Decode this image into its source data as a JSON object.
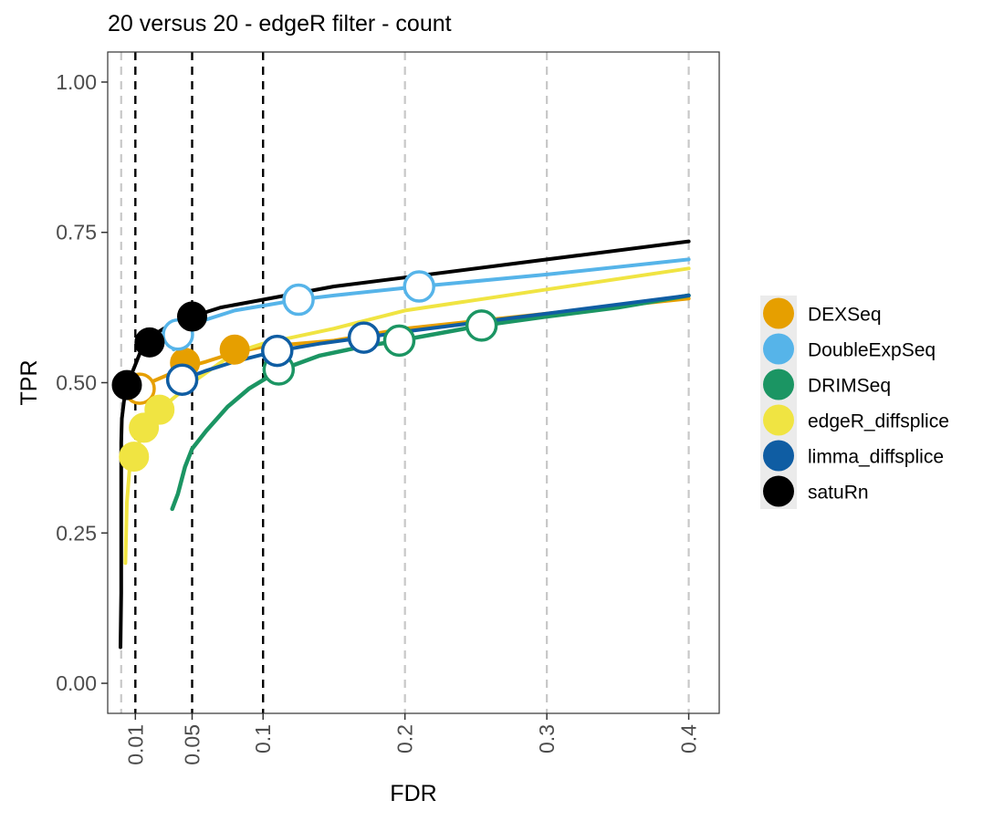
{
  "chart_data": {
    "type": "line",
    "title": "20 versus 20 - edgeR filter - count",
    "xlabel": "FDR",
    "ylabel": "TPR",
    "xlim": [
      -0.0095,
      0.4215
    ],
    "ylim": [
      -0.05,
      1.05
    ],
    "x_ticks": [
      0.01,
      0.05,
      0.1,
      0.2,
      0.3,
      0.4
    ],
    "x_tick_labels": [
      "0.01",
      "0.05",
      "0.1",
      "0.2",
      "0.3",
      "0.4"
    ],
    "y_ticks": [
      0,
      0.25,
      0.5,
      0.75,
      1
    ],
    "y_tick_labels": [
      "0.00",
      "0.25",
      "0.50",
      "0.75",
      "1.00"
    ],
    "fdr_thresholds": [
      0.01,
      0.05,
      0.1
    ],
    "grid": "vertical dashed at x ticks and at 0",
    "legend_position": "right",
    "series": [
      {
        "name": "DEXSeq",
        "color": "#E69F00",
        "curve": [
          [
            0.01,
            0.47
          ],
          [
            0.013,
            0.49
          ],
          [
            0.02,
            0.5
          ],
          [
            0.03,
            0.51
          ],
          [
            0.045,
            0.525
          ],
          [
            0.06,
            0.535
          ],
          [
            0.08,
            0.55
          ],
          [
            0.1,
            0.56
          ],
          [
            0.15,
            0.57
          ],
          [
            0.2,
            0.59
          ],
          [
            0.3,
            0.615
          ],
          [
            0.4,
            0.64
          ]
        ],
        "points": [
          [
            0.013,
            0.49,
            "open"
          ],
          [
            0.045,
            0.533,
            "filled"
          ],
          [
            0.08,
            0.555,
            "filled"
          ]
        ]
      },
      {
        "name": "DoubleExpSeq",
        "color": "#56B4E9",
        "curve": [
          [
            0.037,
            0.555
          ],
          [
            0.045,
            0.585
          ],
          [
            0.06,
            0.605
          ],
          [
            0.08,
            0.62
          ],
          [
            0.1,
            0.628
          ],
          [
            0.125,
            0.638
          ],
          [
            0.15,
            0.645
          ],
          [
            0.21,
            0.66
          ],
          [
            0.3,
            0.68
          ],
          [
            0.4,
            0.705
          ]
        ],
        "points": [
          [
            0.04,
            0.58,
            "open"
          ],
          [
            0.125,
            0.638,
            "open"
          ],
          [
            0.21,
            0.66,
            "open"
          ]
        ]
      },
      {
        "name": "DRIMSeq",
        "color": "#1B9563",
        "curve": [
          [
            0.036,
            0.29
          ],
          [
            0.04,
            0.315
          ],
          [
            0.045,
            0.36
          ],
          [
            0.05,
            0.39
          ],
          [
            0.06,
            0.42
          ],
          [
            0.075,
            0.46
          ],
          [
            0.09,
            0.49
          ],
          [
            0.111,
            0.52
          ],
          [
            0.14,
            0.545
          ],
          [
            0.17,
            0.56
          ],
          [
            0.196,
            0.57
          ],
          [
            0.254,
            0.595
          ],
          [
            0.3,
            0.61
          ],
          [
            0.35,
            0.625
          ],
          [
            0.4,
            0.645
          ]
        ],
        "points": [
          [
            0.111,
            0.522,
            "open"
          ],
          [
            0.196,
            0.57,
            "open"
          ],
          [
            0.254,
            0.595,
            "open"
          ]
        ]
      },
      {
        "name": "edgeR_diffsplice",
        "color": "#F0E442",
        "curve": [
          [
            0.003,
            0.2
          ],
          [
            0.004,
            0.3
          ],
          [
            0.006,
            0.36
          ],
          [
            0.01,
            0.38
          ],
          [
            0.016,
            0.425
          ],
          [
            0.027,
            0.455
          ],
          [
            0.05,
            0.5
          ],
          [
            0.08,
            0.55
          ],
          [
            0.1,
            0.565
          ],
          [
            0.15,
            0.59
          ],
          [
            0.2,
            0.62
          ],
          [
            0.3,
            0.655
          ],
          [
            0.4,
            0.69
          ]
        ],
        "points": [
          [
            0.009,
            0.377,
            "filled"
          ],
          [
            0.016,
            0.425,
            "filled"
          ],
          [
            0.027,
            0.455,
            "filled"
          ]
        ]
      },
      {
        "name": "limma_diffsplice",
        "color": "#0F5DA3",
        "curve": [
          [
            0.04,
            0.49
          ],
          [
            0.043,
            0.505
          ],
          [
            0.06,
            0.52
          ],
          [
            0.08,
            0.535
          ],
          [
            0.11,
            0.553
          ],
          [
            0.14,
            0.565
          ],
          [
            0.171,
            0.575
          ],
          [
            0.2,
            0.585
          ],
          [
            0.3,
            0.615
          ],
          [
            0.4,
            0.645
          ]
        ],
        "points": [
          [
            0.043,
            0.505,
            "open"
          ],
          [
            0.11,
            0.553,
            "open"
          ],
          [
            0.171,
            0.575,
            "open"
          ]
        ]
      },
      {
        "name": "satuRn",
        "color": "#000000",
        "curve": [
          [
            -0.0005,
            0.06
          ],
          [
            0.0,
            0.15
          ],
          [
            0.0,
            0.3
          ],
          [
            0.0,
            0.4
          ],
          [
            0.0005,
            0.44
          ],
          [
            0.002,
            0.47
          ],
          [
            0.004,
            0.495
          ],
          [
            0.01,
            0.53
          ],
          [
            0.015,
            0.56
          ],
          [
            0.02,
            0.575
          ],
          [
            0.03,
            0.59
          ],
          [
            0.05,
            0.61
          ],
          [
            0.07,
            0.625
          ],
          [
            0.1,
            0.638
          ],
          [
            0.15,
            0.66
          ],
          [
            0.2,
            0.675
          ],
          [
            0.3,
            0.705
          ],
          [
            0.4,
            0.735
          ]
        ],
        "points": [
          [
            0.004,
            0.496,
            "filled"
          ],
          [
            0.02,
            0.567,
            "filled"
          ],
          [
            0.05,
            0.61,
            "filled"
          ]
        ]
      }
    ]
  }
}
